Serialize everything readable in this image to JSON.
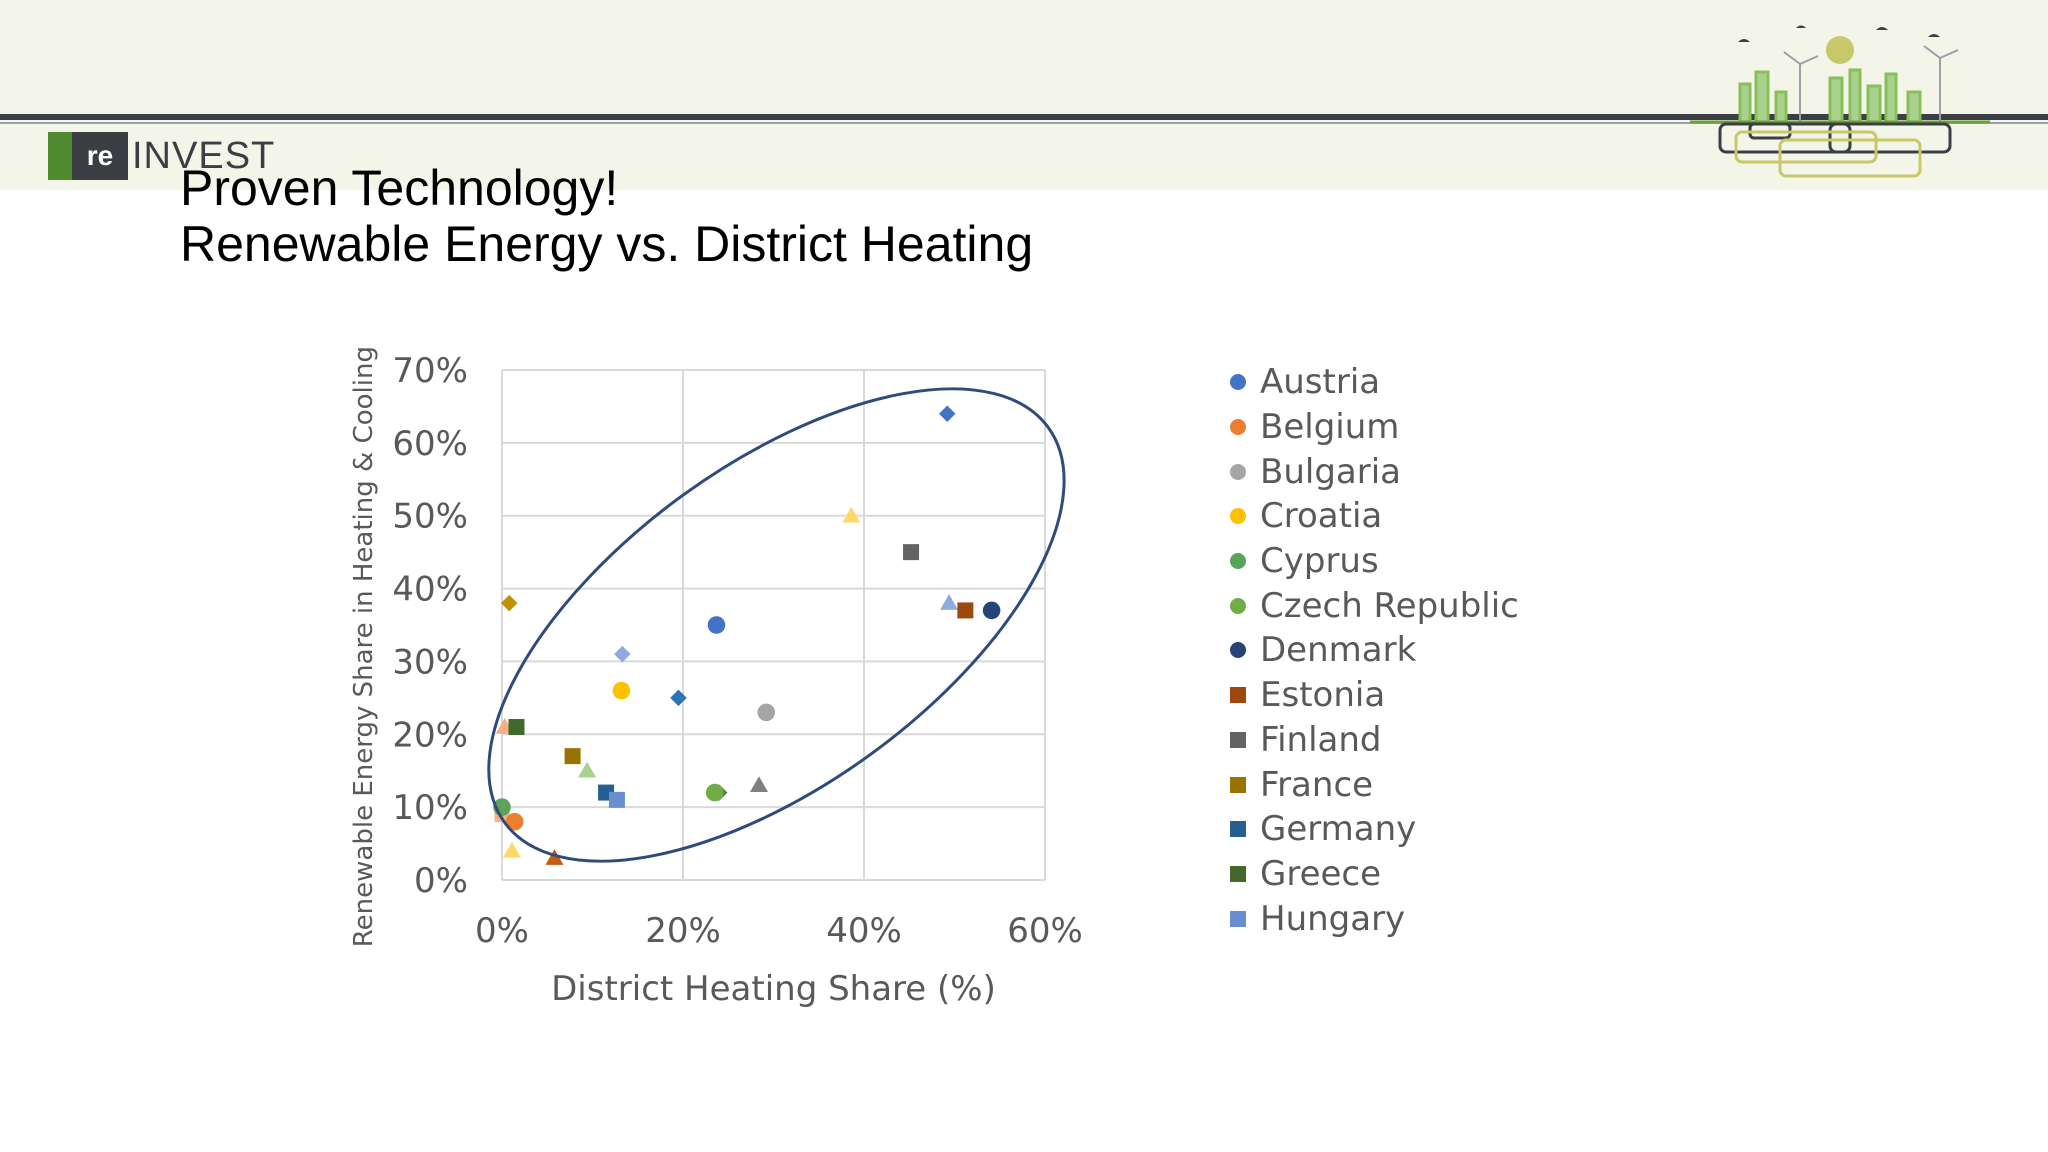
{
  "slide": {
    "title": "Proven Technology!\nRenewable Energy vs. District Heating",
    "logo": {
      "prefix": "re",
      "name": "INVEST"
    }
  },
  "chart_data": {
    "type": "scatter",
    "title": "",
    "xlabel": "District Heating Share (%)",
    "ylabel": "Renewable Energy Share in Heating & Cooling (%)",
    "xlim": [
      0,
      0.6
    ],
    "ylim": [
      0,
      0.7
    ],
    "x_ticks": [
      "0%",
      "20%",
      "40%",
      "60%"
    ],
    "y_ticks": [
      "0%",
      "10%",
      "20%",
      "30%",
      "40%",
      "50%",
      "60%",
      "70%"
    ],
    "grid": true,
    "legend_position": "right",
    "annotation": "ellipse enclosing data points",
    "series": [
      {
        "name": "Austria",
        "marker": "circle",
        "color": "#4472c4",
        "points": [
          [
            0.237,
            0.35
          ]
        ]
      },
      {
        "name": "Belgium",
        "marker": "circle",
        "color": "#ed7d31",
        "points": [
          [
            0.014,
            0.08
          ]
        ]
      },
      {
        "name": "Bulgaria",
        "marker": "circle",
        "color": "#a5a5a5",
        "points": [
          [
            0.292,
            0.23
          ]
        ]
      },
      {
        "name": "Croatia",
        "marker": "circle",
        "color": "#ffc000",
        "points": [
          [
            0.132,
            0.26
          ]
        ]
      },
      {
        "name": "Cyprus",
        "marker": "circle",
        "color": "#5ba35b",
        "points": [
          [
            0.0,
            0.1
          ]
        ]
      },
      {
        "name": "Czech Republic",
        "marker": "circle",
        "color": "#70ad47",
        "points": [
          [
            0.235,
            0.12
          ]
        ]
      },
      {
        "name": "Denmark",
        "marker": "circle",
        "color": "#264478",
        "points": [
          [
            0.541,
            0.37
          ]
        ]
      },
      {
        "name": "Estonia",
        "marker": "square",
        "color": "#9e480e",
        "points": [
          [
            0.512,
            0.37
          ]
        ]
      },
      {
        "name": "Finland",
        "marker": "square",
        "color": "#636363",
        "points": [
          [
            0.452,
            0.45
          ]
        ]
      },
      {
        "name": "France",
        "marker": "square",
        "color": "#997300",
        "points": [
          [
            0.078,
            0.17
          ]
        ]
      },
      {
        "name": "Germany",
        "marker": "square",
        "color": "#255e91",
        "points": [
          [
            0.115,
            0.12
          ]
        ]
      },
      {
        "name": "Greece",
        "marker": "square",
        "color": "#43682b",
        "points": [
          [
            0.016,
            0.21
          ]
        ]
      },
      {
        "name": "Hungary",
        "marker": "square",
        "color": "#698ed0",
        "points": [
          [
            0.127,
            0.11
          ]
        ]
      }
    ],
    "unlabeled_points": [
      {
        "marker": "diamond",
        "color": "#4472c4",
        "x": 0.492,
        "y": 0.64
      },
      {
        "marker": "triangle",
        "color": "#ffd966",
        "x": 0.386,
        "y": 0.5
      },
      {
        "marker": "triangle",
        "color": "#8faadc",
        "x": 0.494,
        "y": 0.38
      },
      {
        "marker": "diamond",
        "color": "#bf9000",
        "x": 0.008,
        "y": 0.38
      },
      {
        "marker": "diamond",
        "color": "#8faadc",
        "x": 0.133,
        "y": 0.31
      },
      {
        "marker": "diamond",
        "color": "#2e75b6",
        "x": 0.195,
        "y": 0.25
      },
      {
        "marker": "triangle",
        "color": "#f4b183",
        "x": 0.003,
        "y": 0.21
      },
      {
        "marker": "triangle",
        "color": "#a9d18e",
        "x": 0.094,
        "y": 0.15
      },
      {
        "marker": "triangle",
        "color": "#7f7f7f",
        "x": 0.284,
        "y": 0.13
      },
      {
        "marker": "diamond",
        "color": "#548235",
        "x": 0.24,
        "y": 0.12
      },
      {
        "marker": "square",
        "color": "#f4b183",
        "x": 0.0,
        "y": 0.09
      },
      {
        "marker": "triangle",
        "color": "#ffd966",
        "x": 0.011,
        "y": 0.04
      },
      {
        "marker": "triangle",
        "color": "#c55a11",
        "x": 0.058,
        "y": 0.03
      }
    ]
  },
  "colors": {
    "header_band": "#f3f5e8",
    "ellipse": "#2f4b7c",
    "axis_text": "#595959",
    "grid": "#d9d9d9"
  }
}
